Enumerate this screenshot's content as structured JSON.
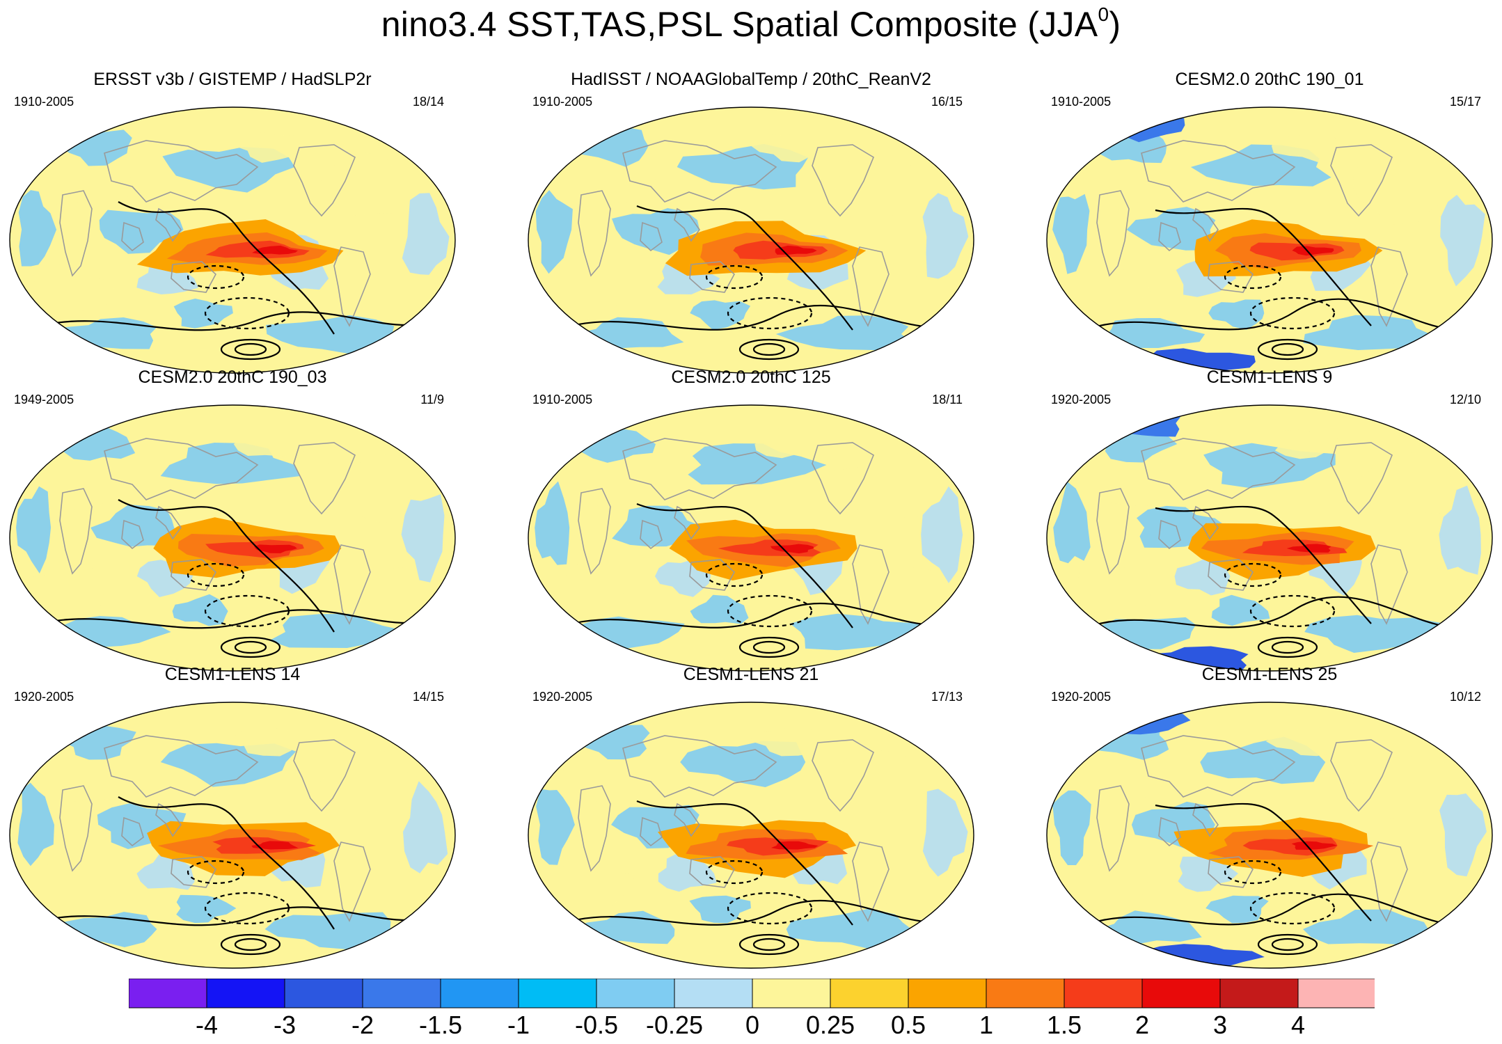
{
  "title": {
    "main": "nino3.4 SST,TAS,PSL Spatial Composite (JJA",
    "superscript": "0",
    "closing": ")"
  },
  "panels": [
    {
      "title": "ERSST v3b / GISTEMP / HadSLP2r",
      "years": "1910-2005",
      "count": "18/14"
    },
    {
      "title": "HadISST / NOAAGlobalTemp / 20thC_ReanV2",
      "years": "1910-2005",
      "count": "16/15"
    },
    {
      "title": "CESM2.0 20thC 190_01",
      "years": "1910-2005",
      "count": "15/17"
    },
    {
      "title": "CESM2.0 20thC 190_03",
      "years": "1949-2005",
      "count": "11/9"
    },
    {
      "title": "CESM2.0 20thC 125",
      "years": "1910-2005",
      "count": "18/11"
    },
    {
      "title": "CESM1-LENS 9",
      "years": "1920-2005",
      "count": "12/10"
    },
    {
      "title": "CESM1-LENS 14",
      "years": "1920-2005",
      "count": "14/15"
    },
    {
      "title": "CESM1-LENS 21",
      "years": "1920-2005",
      "count": "17/13"
    },
    {
      "title": "CESM1-LENS 25",
      "years": "1920-2005",
      "count": "10/12"
    }
  ],
  "colorbar": {
    "labels": [
      "-4",
      "-3",
      "-2",
      "-1.5",
      "-1",
      "-0.5",
      "-0.25",
      "0",
      "0.25",
      "0.5",
      "1",
      "1.5",
      "2",
      "3",
      "4"
    ],
    "colors": [
      "#7a1ff0",
      "#1414f5",
      "#2c57e0",
      "#3a78ea",
      "#2196f3",
      "#00bcf5",
      "#7fccf2",
      "#b4def4",
      "#fdf59a",
      "#fcd22e",
      "#fba400",
      "#f97a14",
      "#f53c1a",
      "#e80a0a",
      "#c41a1a",
      "#fdb4b4"
    ]
  },
  "chart_data": {
    "type": "heatmap",
    "title": "nino3.4 SST,TAS,PSL Spatial Composite (JJA0)",
    "projection": "global map (Hammer-type ellipse), 3x3 panel grid",
    "variables": [
      "SST/TAS shaded",
      "PSL contours (solid positive, dashed negative)"
    ],
    "contour_levels": [
      -4,
      -3,
      -2,
      -1.5,
      -1,
      -0.5,
      -0.25,
      0,
      0.25,
      0.5,
      1,
      1.5,
      2,
      3,
      4
    ],
    "panels": [
      "ERSST v3b / GISTEMP / HadSLP2r",
      "HadISST / NOAAGlobalTemp / 20thC_ReanV2",
      "CESM2.0 20thC 190_01",
      "CESM2.0 20thC 190_03",
      "CESM2.0 20thC 125",
      "CESM1-LENS 9",
      "CESM1-LENS 14",
      "CESM1-LENS 21",
      "CESM1-LENS 25"
    ]
  }
}
